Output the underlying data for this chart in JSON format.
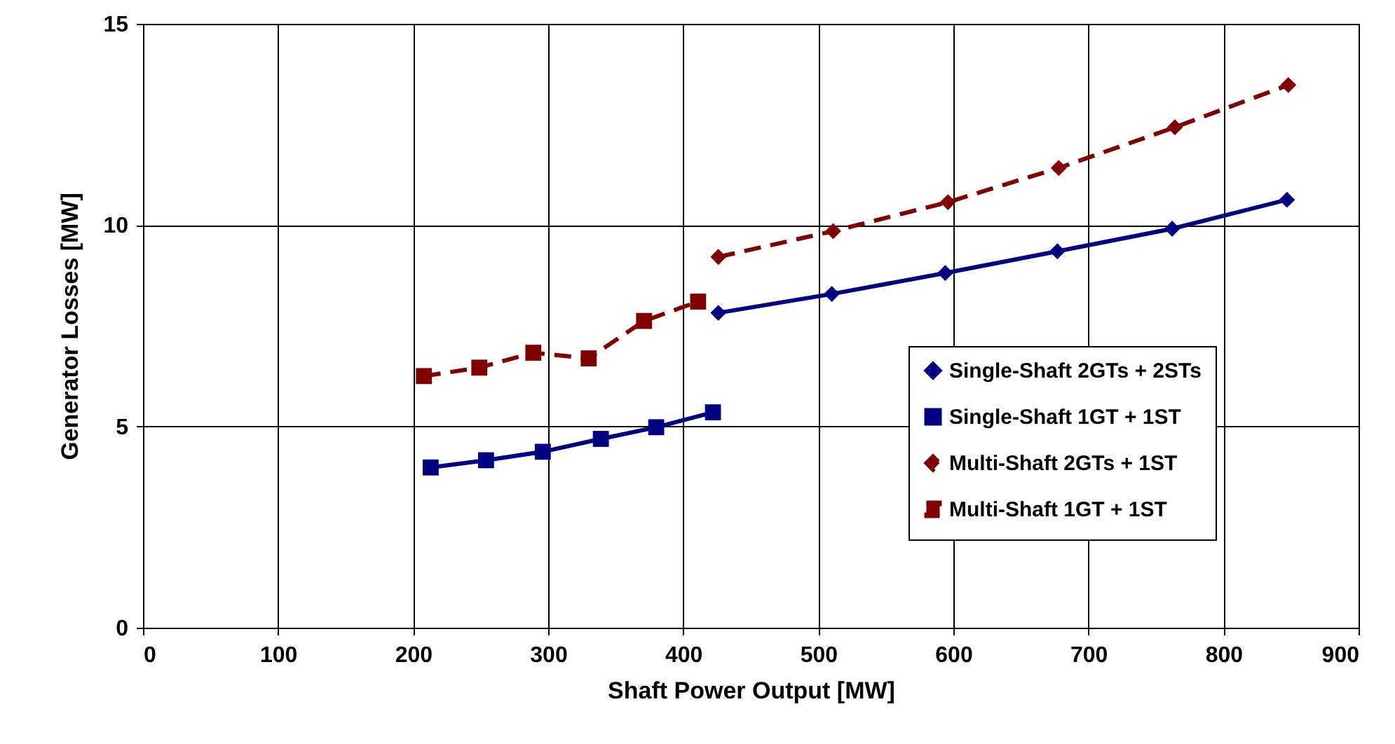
{
  "chart_data": {
    "type": "line",
    "xlabel": "Shaft Power Output [MW]",
    "ylabel": "Generator Losses [MW]",
    "xlim": [
      0,
      900
    ],
    "xticks": [
      0,
      100,
      200,
      300,
      400,
      500,
      600,
      700,
      800,
      900
    ],
    "ylim": [
      0,
      15
    ],
    "yticks": [
      0,
      5,
      10,
      15
    ],
    "grid": true,
    "legend": "bottom right",
    "series": [
      {
        "name": "Single-Shaft 2GTs + 2STs",
        "color": "#000080",
        "marker": "diamond",
        "line_style": "solid",
        "x": [
          426,
          510,
          594,
          677,
          762,
          847
        ],
        "values": [
          7.82,
          8.29,
          8.81,
          9.35,
          9.91,
          10.63
        ]
      },
      {
        "name": "Single-Shaft 1GT + 1ST",
        "color": "#000080",
        "marker": "square",
        "line_style": "solid",
        "x": [
          213,
          254,
          296,
          339,
          380,
          422
        ],
        "values": [
          3.98,
          4.16,
          4.37,
          4.69,
          4.98,
          5.35
        ]
      },
      {
        "name": "Multi-Shaft 2GTs + 1ST",
        "color": "#800000",
        "marker": "diamond",
        "line_style": "dashed",
        "x": [
          426,
          511,
          596,
          678,
          764,
          848
        ],
        "values": [
          9.21,
          9.85,
          10.57,
          11.42,
          12.43,
          13.48
        ]
      },
      {
        "name": "Multi-Shaft 1GT + 1ST",
        "color": "#800000",
        "marker": "square",
        "line_style": "dashed",
        "x": [
          208,
          249,
          289,
          330,
          371,
          411
        ],
        "values": [
          6.25,
          6.46,
          6.83,
          6.69,
          7.62,
          8.1
        ]
      }
    ]
  }
}
